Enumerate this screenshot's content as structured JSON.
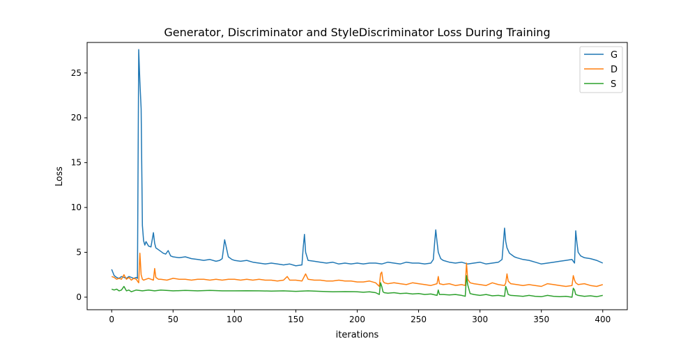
{
  "chart_data": {
    "type": "line",
    "title": "Generator, Discriminator and StyleDiscriminator Loss During Training",
    "xlabel": "iterations",
    "ylabel": "Loss",
    "xlim": [
      -20,
      420
    ],
    "ylim": [
      -1.4,
      28.4
    ],
    "xticks": [
      0,
      50,
      100,
      150,
      200,
      250,
      300,
      350,
      400
    ],
    "yticks": [
      0,
      5,
      10,
      15,
      20,
      25
    ],
    "legend_position": "upper right",
    "grid": false,
    "series": [
      {
        "name": "G",
        "color": "#1f77b4",
        "x": [
          0,
          2,
          4,
          6,
          8,
          10,
          12,
          14,
          16,
          18,
          20,
          21,
          22,
          23,
          24,
          25,
          26,
          27,
          28,
          30,
          32,
          34,
          35,
          36,
          38,
          40,
          42,
          44,
          46,
          48,
          50,
          55,
          60,
          65,
          70,
          75,
          80,
          85,
          88,
          90,
          92,
          93,
          95,
          98,
          100,
          105,
          110,
          115,
          120,
          125,
          130,
          135,
          140,
          145,
          150,
          155,
          156,
          157,
          158,
          160,
          165,
          170,
          175,
          180,
          185,
          190,
          195,
          200,
          205,
          210,
          215,
          220,
          225,
          230,
          235,
          240,
          245,
          250,
          255,
          260,
          262,
          263,
          264,
          265,
          266,
          268,
          270,
          275,
          280,
          285,
          290,
          295,
          300,
          305,
          310,
          315,
          318,
          320,
          321,
          322,
          324,
          326,
          328,
          330,
          335,
          340,
          345,
          350,
          355,
          360,
          365,
          370,
          375,
          376,
          377,
          378,
          379,
          380,
          382,
          385,
          390,
          395,
          400
        ],
        "values": [
          3.1,
          2.4,
          2.2,
          2.1,
          2.3,
          2.2,
          2.1,
          2.3,
          2.2,
          2.1,
          2.2,
          2.1,
          27.6,
          24.0,
          21.0,
          8.0,
          6.3,
          5.8,
          6.2,
          5.7,
          5.6,
          7.2,
          6.0,
          5.5,
          5.3,
          5.1,
          4.9,
          4.8,
          5.2,
          4.6,
          4.5,
          4.4,
          4.5,
          4.3,
          4.2,
          4.1,
          4.2,
          4.0,
          4.1,
          4.3,
          6.4,
          5.8,
          4.5,
          4.2,
          4.1,
          4.0,
          4.1,
          3.9,
          3.8,
          3.7,
          3.8,
          3.7,
          3.6,
          3.7,
          3.5,
          3.6,
          5.5,
          7.0,
          5.0,
          4.1,
          4.0,
          3.9,
          3.8,
          3.9,
          3.7,
          3.8,
          3.7,
          3.8,
          3.7,
          3.8,
          3.8,
          3.7,
          3.9,
          3.8,
          3.7,
          3.9,
          3.8,
          3.8,
          3.7,
          3.8,
          4.2,
          6.0,
          7.5,
          6.2,
          5.0,
          4.3,
          4.1,
          3.9,
          3.8,
          3.9,
          3.7,
          3.8,
          3.9,
          3.7,
          3.8,
          3.9,
          4.2,
          7.7,
          6.2,
          5.5,
          4.9,
          4.7,
          4.5,
          4.4,
          4.2,
          4.1,
          3.9,
          3.7,
          3.8,
          3.9,
          4.0,
          4.1,
          4.2,
          4.0,
          3.8,
          7.4,
          6.0,
          5.0,
          4.6,
          4.4,
          4.3,
          4.1,
          3.8
        ]
      },
      {
        "name": "D",
        "color": "#ff7f0e",
        "x": [
          0,
          2,
          4,
          6,
          8,
          10,
          12,
          14,
          16,
          18,
          20,
          21,
          22,
          23,
          24,
          25,
          26,
          28,
          30,
          32,
          34,
          35,
          36,
          38,
          40,
          45,
          50,
          55,
          60,
          65,
          70,
          75,
          80,
          85,
          90,
          95,
          100,
          105,
          110,
          115,
          120,
          125,
          130,
          135,
          140,
          143,
          145,
          150,
          155,
          158,
          160,
          165,
          170,
          175,
          180,
          185,
          190,
          195,
          200,
          205,
          210,
          215,
          218,
          219,
          220,
          221,
          222,
          225,
          230,
          235,
          240,
          245,
          250,
          255,
          260,
          265,
          266,
          267,
          270,
          275,
          280,
          285,
          288,
          289,
          290,
          292,
          295,
          300,
          305,
          310,
          315,
          320,
          321,
          322,
          323,
          325,
          330,
          335,
          340,
          345,
          350,
          355,
          360,
          365,
          370,
          375,
          376,
          377,
          378,
          380,
          385,
          390,
          395,
          400
        ],
        "values": [
          2.3,
          2.2,
          2.0,
          2.1,
          2.0,
          2.5,
          2.0,
          2.2,
          1.9,
          2.1,
          2.0,
          1.8,
          1.6,
          4.9,
          2.5,
          2.0,
          1.9,
          2.0,
          2.1,
          2.0,
          1.9,
          3.2,
          2.2,
          2.0,
          2.0,
          1.9,
          2.1,
          2.0,
          2.0,
          1.9,
          2.0,
          2.0,
          1.9,
          2.0,
          1.9,
          2.0,
          2.0,
          1.9,
          2.0,
          1.9,
          2.0,
          1.9,
          1.9,
          1.8,
          1.9,
          2.3,
          1.9,
          1.9,
          1.8,
          2.6,
          2.0,
          1.9,
          1.9,
          1.8,
          1.8,
          1.9,
          1.8,
          1.8,
          1.7,
          1.7,
          1.8,
          1.6,
          1.2,
          2.6,
          2.8,
          1.8,
          1.6,
          1.5,
          1.6,
          1.5,
          1.4,
          1.6,
          1.5,
          1.4,
          1.3,
          1.5,
          2.3,
          1.5,
          1.4,
          1.5,
          1.3,
          1.4,
          1.3,
          3.8,
          2.0,
          1.6,
          1.5,
          1.4,
          1.3,
          1.6,
          1.4,
          1.3,
          1.6,
          2.6,
          1.8,
          1.5,
          1.4,
          1.3,
          1.4,
          1.3,
          1.2,
          1.5,
          1.4,
          1.3,
          1.2,
          1.3,
          2.4,
          1.9,
          1.6,
          1.4,
          1.5,
          1.3,
          1.2,
          1.4
        ]
      },
      {
        "name": "S",
        "color": "#2ca02c",
        "x": [
          0,
          2,
          4,
          6,
          8,
          10,
          12,
          14,
          16,
          18,
          20,
          25,
          30,
          35,
          40,
          50,
          60,
          70,
          80,
          90,
          100,
          110,
          120,
          130,
          140,
          150,
          160,
          170,
          180,
          190,
          200,
          205,
          210,
          215,
          218,
          219,
          220,
          221,
          222,
          225,
          230,
          235,
          240,
          245,
          250,
          255,
          260,
          265,
          266,
          267,
          270,
          275,
          280,
          285,
          288,
          289,
          290,
          292,
          295,
          300,
          305,
          310,
          315,
          320,
          321,
          322,
          323,
          325,
          330,
          335,
          340,
          345,
          350,
          355,
          360,
          365,
          370,
          375,
          376,
          377,
          378,
          380,
          385,
          390,
          395,
          400
        ],
        "values": [
          0.9,
          0.8,
          0.9,
          0.7,
          0.8,
          1.2,
          0.7,
          0.8,
          0.6,
          0.7,
          0.8,
          0.7,
          0.8,
          0.7,
          0.8,
          0.7,
          0.75,
          0.7,
          0.75,
          0.7,
          0.7,
          0.72,
          0.7,
          0.68,
          0.7,
          0.65,
          0.7,
          0.65,
          0.6,
          0.62,
          0.6,
          0.55,
          0.6,
          0.5,
          0.3,
          1.6,
          1.2,
          0.6,
          0.5,
          0.45,
          0.5,
          0.4,
          0.45,
          0.35,
          0.4,
          0.3,
          0.35,
          0.2,
          0.8,
          0.3,
          0.3,
          0.25,
          0.3,
          0.2,
          0.1,
          2.4,
          1.4,
          0.4,
          0.3,
          0.2,
          0.3,
          0.15,
          0.2,
          0.1,
          1.2,
          0.8,
          0.3,
          0.2,
          0.15,
          0.1,
          0.2,
          0.1,
          0.05,
          0.2,
          0.1,
          0.05,
          0.1,
          0.0,
          1.0,
          0.8,
          0.3,
          0.2,
          0.1,
          0.15,
          0.05,
          0.2
        ]
      }
    ]
  }
}
